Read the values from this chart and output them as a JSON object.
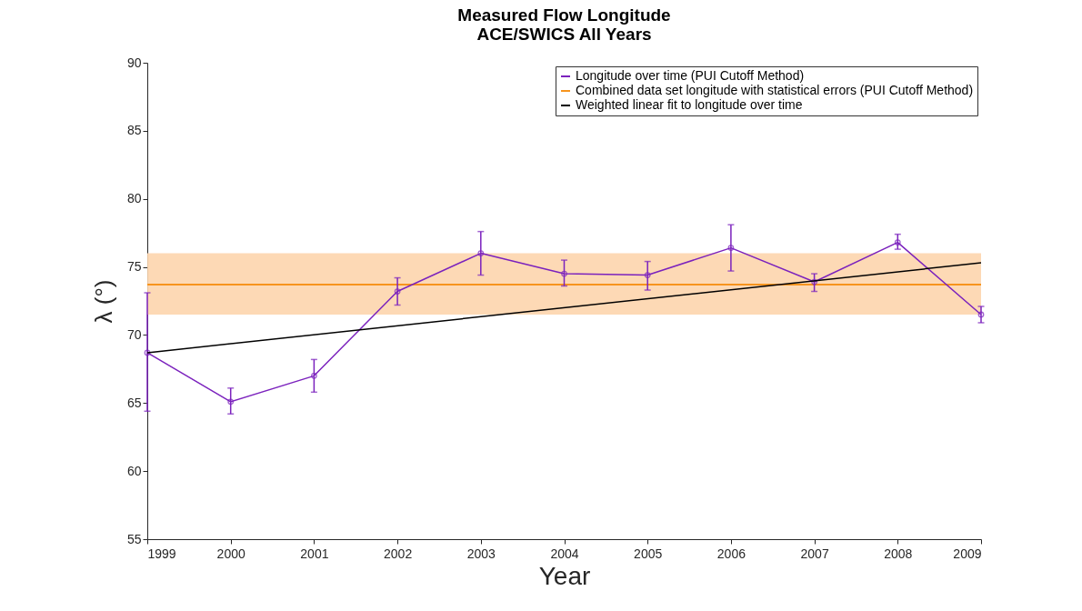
{
  "chart_data": {
    "type": "line",
    "title": "Measured Flow Longitude",
    "subtitle": "ACE/SWICS All Years",
    "xlabel": "Year",
    "ylabel": "λ (°)",
    "x": [
      1999,
      2000,
      2001,
      2002,
      2003,
      2004,
      2005,
      2006,
      2007,
      2008,
      2009
    ],
    "series": [
      {
        "name": "Longitude over time (PUI Cutoff Method)",
        "color": "#7b22bd",
        "marker": "circle",
        "values": [
          68.7,
          65.1,
          67.0,
          73.2,
          76.0,
          74.5,
          74.4,
          76.4,
          73.9,
          76.8,
          71.5
        ],
        "errors": [
          [
            64.4,
            73.1
          ],
          [
            64.2,
            66.1
          ],
          [
            65.8,
            68.2
          ],
          [
            72.2,
            74.2
          ],
          [
            74.4,
            77.6
          ],
          [
            73.6,
            75.5
          ],
          [
            73.3,
            75.4
          ],
          [
            74.7,
            78.1
          ],
          [
            73.2,
            74.5
          ],
          [
            76.3,
            77.4
          ],
          [
            70.9,
            72.1
          ]
        ]
      },
      {
        "name": "Weighted linear fit to longitude over time",
        "color": "#000000",
        "type": "line",
        "x": [
          1999,
          2009
        ],
        "values": [
          68.7,
          75.3
        ]
      }
    ],
    "ref_lines": [
      {
        "axis": "y",
        "value": 73.7,
        "label": "Combined data set longitude with statistical errors (PUI Cutoff Method)",
        "color": "#f7941d"
      }
    ],
    "bands": [
      {
        "axis": "y",
        "from": 71.5,
        "to": 76.0,
        "color": "#fdd5ad"
      }
    ],
    "xlim": [
      1999,
      2009
    ],
    "xticks": [
      1999,
      2000,
      2001,
      2002,
      2003,
      2004,
      2005,
      2006,
      2007,
      2008,
      2009
    ],
    "ylim": [
      55,
      90
    ],
    "yticks": [
      55,
      60,
      65,
      70,
      75,
      80,
      85,
      90
    ],
    "legend": "top right",
    "grid": false,
    "line_style": "solid"
  }
}
